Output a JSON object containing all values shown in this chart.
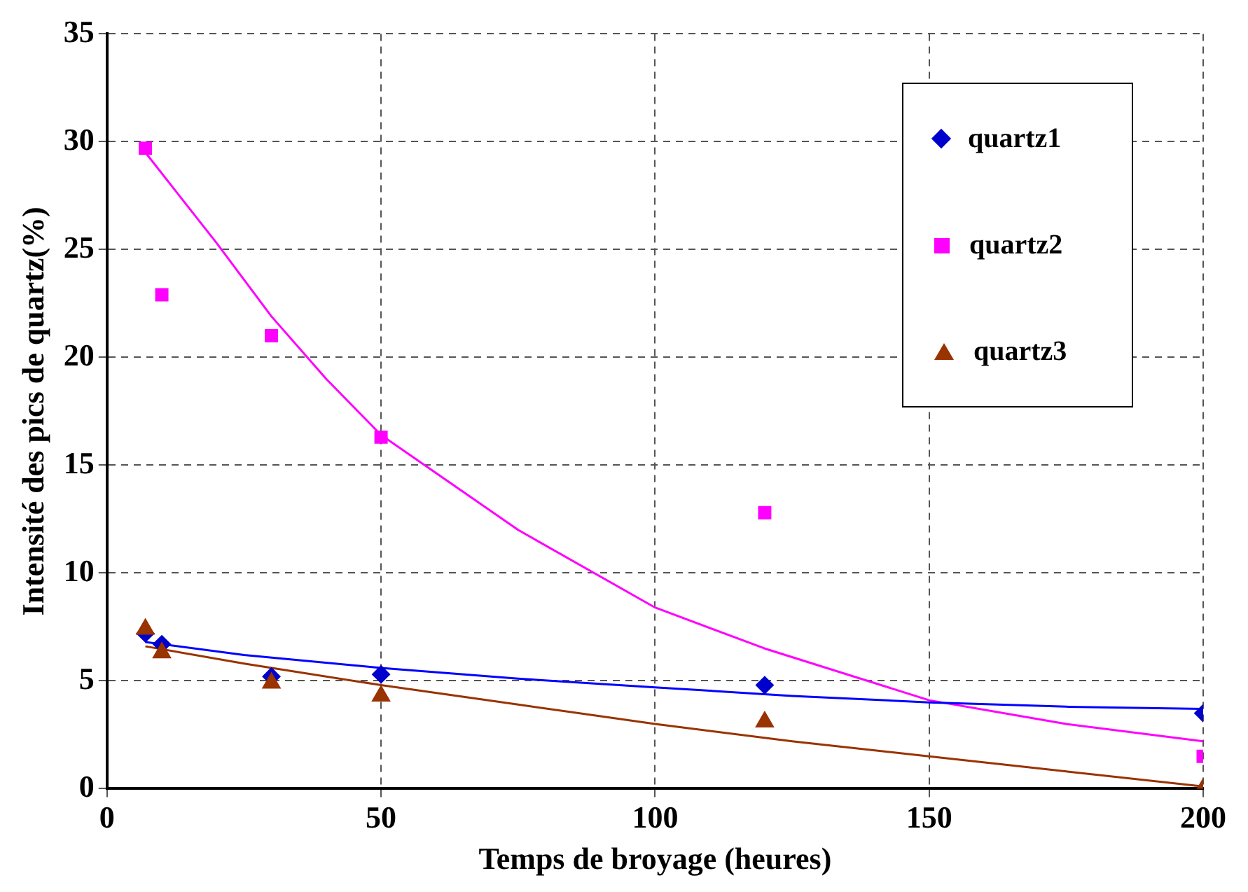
{
  "chart_data": {
    "type": "scatter",
    "xlabel": "Temps de broyage (heures)",
    "ylabel": "Intensité des pics de quartz(%)",
    "xlim": [
      0,
      200
    ],
    "xticks": [
      0,
      50,
      100,
      150,
      200
    ],
    "ylim": [
      0,
      35
    ],
    "yticks": [
      0,
      5,
      10,
      15,
      20,
      25,
      30,
      35
    ],
    "grid": true,
    "legend": "top right",
    "series": [
      {
        "name": "quartz1",
        "color": "#0000cc",
        "marker": "diamond",
        "x": [
          7,
          10,
          30,
          50,
          120,
          200
        ],
        "values": [
          7.2,
          6.7,
          5.2,
          5.3,
          4.8,
          3.5
        ]
      },
      {
        "name": "quartz2",
        "color": "#ff00ff",
        "marker": "square",
        "x": [
          7,
          10,
          30,
          50,
          120,
          200
        ],
        "values": [
          29.7,
          22.9,
          21,
          16.3,
          12.8,
          1.5
        ]
      },
      {
        "name": "quartz3",
        "color": "#993300",
        "marker": "triangle",
        "x": [
          7,
          10,
          30,
          50,
          120,
          200
        ],
        "values": [
          7.4,
          6.3,
          4.9,
          4.3,
          3.1,
          0
        ]
      },
      {
        "type": "line",
        "color": "#0000ff",
        "marker": "none",
        "x": [
          7,
          25,
          50,
          75,
          100,
          125,
          150,
          175,
          200
        ],
        "values": [
          6.8,
          6.2,
          5.6,
          5.1,
          4.7,
          4.3,
          4.0,
          3.8,
          3.7
        ]
      },
      {
        "type": "line",
        "color": "#ff00ff",
        "marker": "none",
        "x": [
          7,
          20,
          30,
          40,
          50,
          75,
          100,
          120,
          150,
          175,
          200
        ],
        "values": [
          29.5,
          25.3,
          21.9,
          19.0,
          16.4,
          12.0,
          8.4,
          6.5,
          4.1,
          3.0,
          2.2
        ]
      },
      {
        "type": "line",
        "color": "#993300",
        "marker": "none",
        "x": [
          7,
          25,
          50,
          75,
          100,
          125,
          150,
          175,
          200
        ],
        "values": [
          6.6,
          5.8,
          4.8,
          3.9,
          3.0,
          2.2,
          1.5,
          0.8,
          0.1
        ]
      }
    ]
  }
}
